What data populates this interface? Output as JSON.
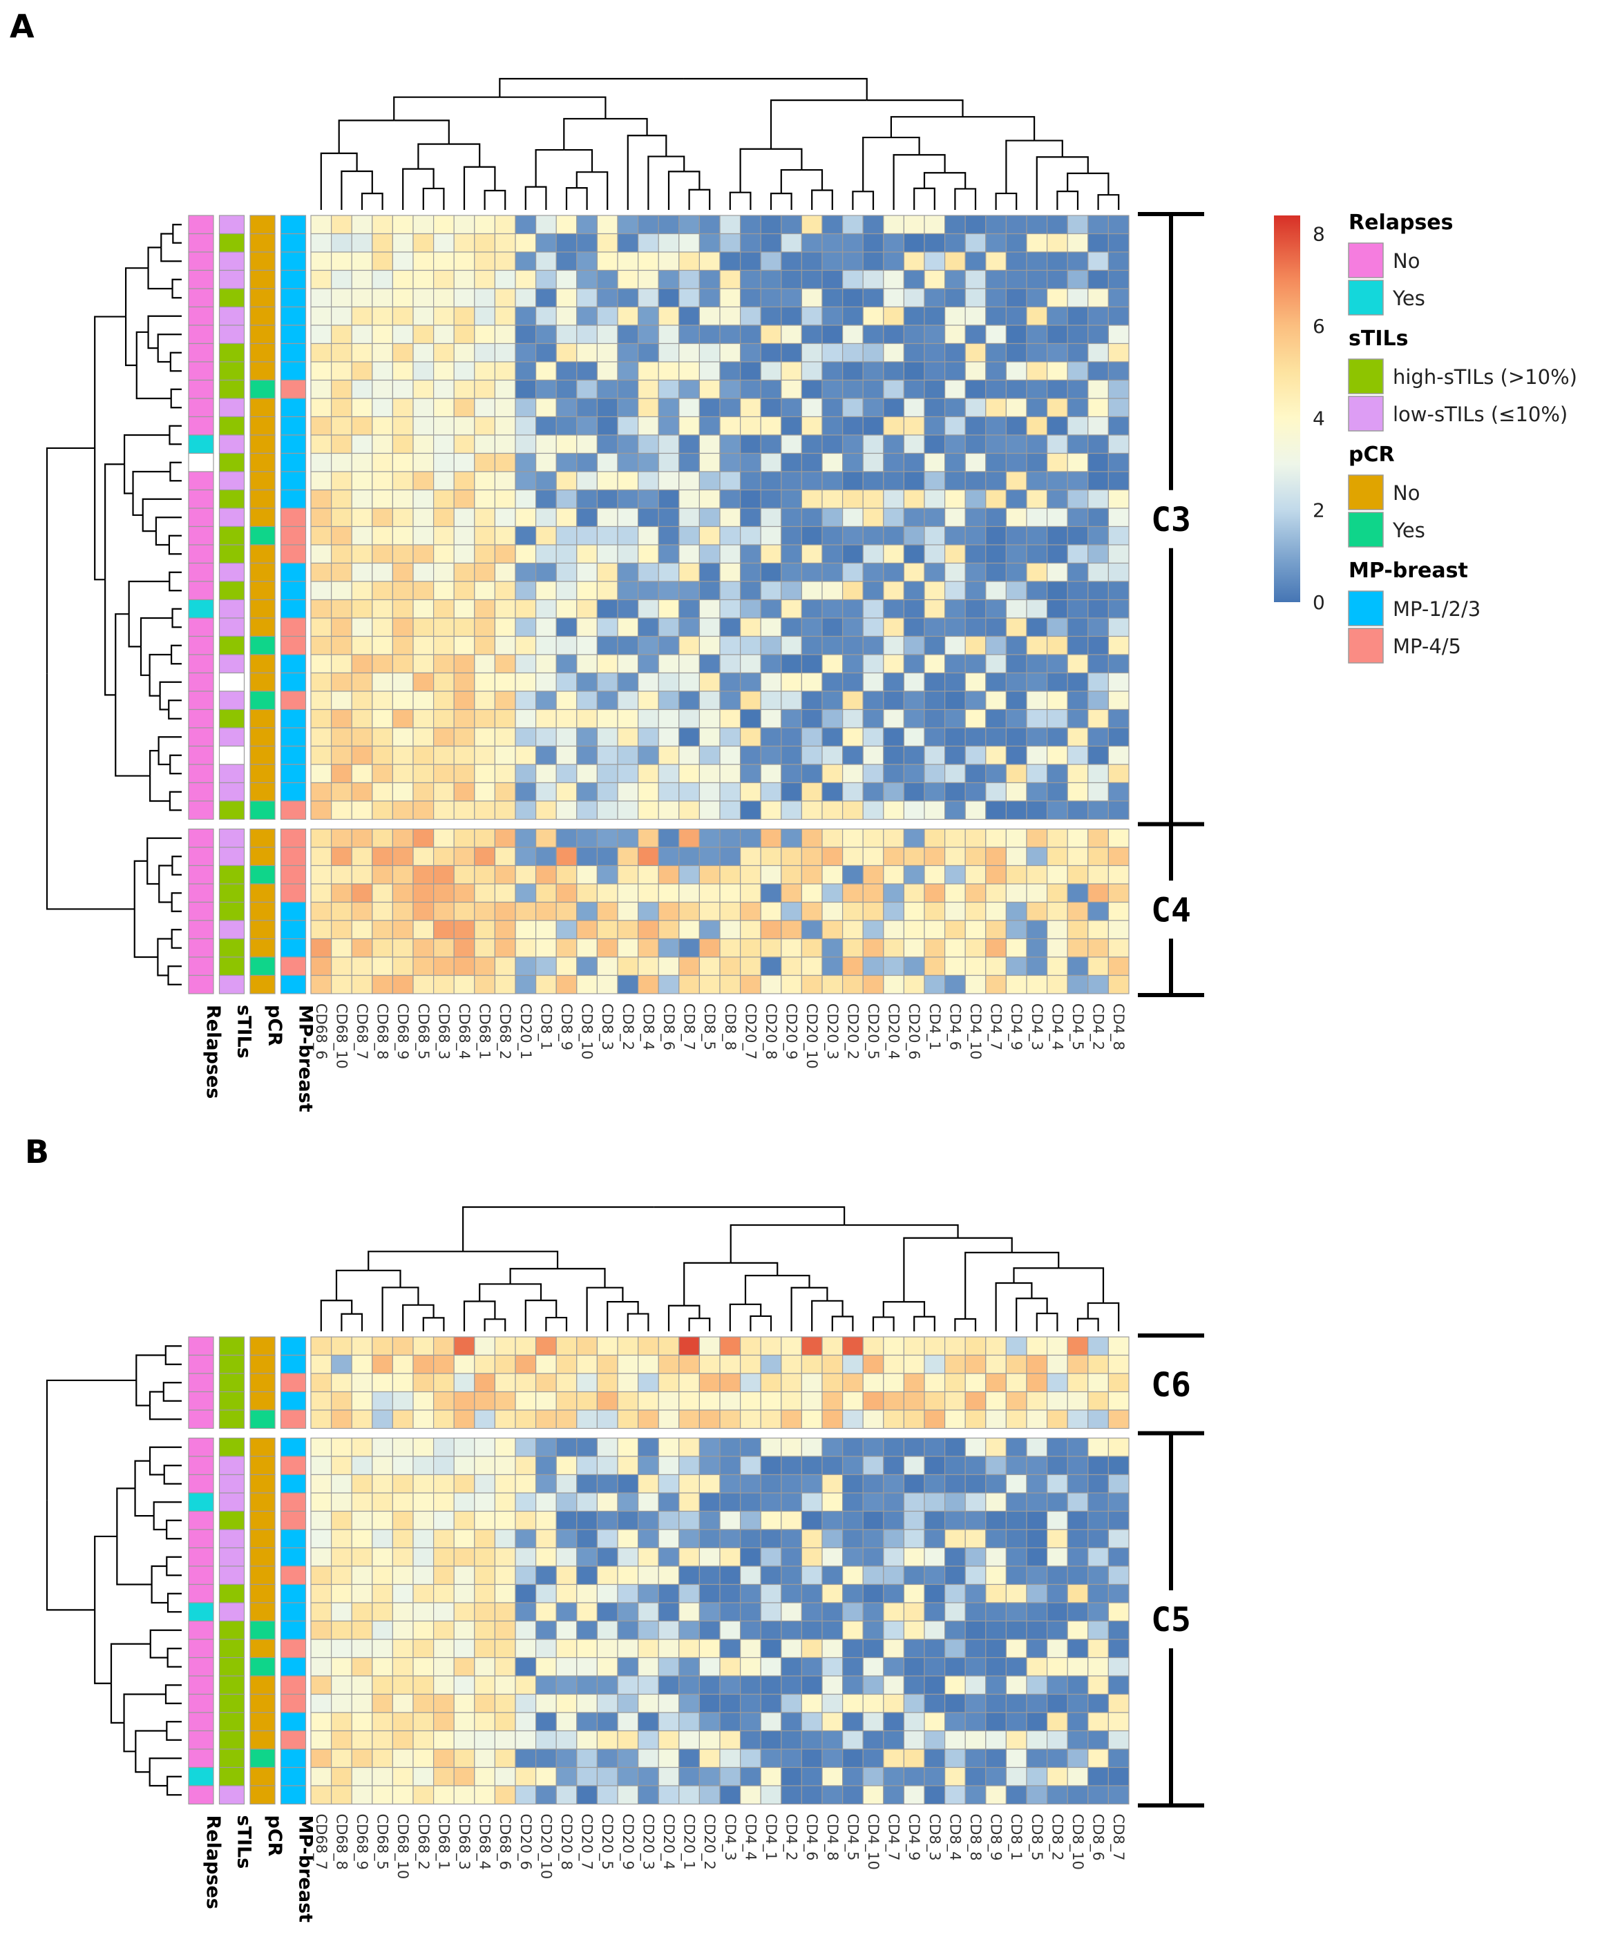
{
  "chart_data": [
    {
      "type": "heatmap",
      "panel": "A",
      "columns": [
        "CD68_6",
        "CD68_10",
        "CD68_7",
        "CD68_8",
        "CD68_9",
        "CD68_5",
        "CD68_3",
        "CD68_4",
        "CD68_1",
        "CD68_2",
        "CD20_1",
        "CD8_1",
        "CD8_9",
        "CD8_10",
        "CD8_3",
        "CD8_2",
        "CD8_4",
        "CD8_6",
        "CD8_7",
        "CD8_5",
        "CD8_8",
        "CD20_7",
        "CD20_8",
        "CD20_9",
        "CD20_10",
        "CD20_3",
        "CD20_2",
        "CD20_5",
        "CD20_4",
        "CD20_6",
        "CD4_1",
        "CD4_6",
        "CD4_10",
        "CD4_7",
        "CD4_9",
        "CD4_3",
        "CD4_4",
        "CD4_5",
        "CD4_2",
        "CD4_8"
      ],
      "column_groups": [
        {
          "name": "CD68",
          "start": 0,
          "end": 10,
          "pattern": "high"
        },
        {
          "name": "CD20_1+CD8",
          "start": 10,
          "end": 21,
          "pattern": "mid"
        },
        {
          "name": "CD20",
          "start": 21,
          "end": 30,
          "pattern": "low"
        },
        {
          "name": "CD4",
          "start": 30,
          "end": 40,
          "pattern": "low"
        }
      ],
      "clusters": [
        {
          "label": "C3",
          "rows": 33
        },
        {
          "label": "C4",
          "rows": 9
        }
      ],
      "row_annotations": {
        "Relapses": [
          "No",
          "No",
          "No",
          "No",
          "No",
          "No",
          "No",
          "No",
          "No",
          "No",
          "No",
          "No",
          "Yes",
          "",
          "No",
          "No",
          "No",
          "No",
          "No",
          "No",
          "No",
          "Yes",
          "No",
          "No",
          "No",
          "No",
          "No",
          "No",
          "No",
          "No",
          "No",
          "No",
          "No",
          "No",
          "No",
          "No",
          "No",
          "No",
          "No",
          "No",
          "No",
          "No"
        ],
        "sTILs": [
          "low",
          "high",
          "low",
          "low",
          "high",
          "low",
          "low",
          "high",
          "high",
          "high",
          "low",
          "high",
          "low",
          "high",
          "low",
          "high",
          "low",
          "high",
          "high",
          "low",
          "high",
          "low",
          "low",
          "high",
          "low",
          "",
          "low",
          "high",
          "low",
          "",
          "low",
          "low",
          "high",
          "low",
          "low",
          "high",
          "high",
          "high",
          "low",
          "high",
          "high",
          "low"
        ],
        "pCR": [
          "No",
          "No",
          "No",
          "No",
          "No",
          "No",
          "No",
          "No",
          "No",
          "Yes",
          "No",
          "No",
          "No",
          "No",
          "No",
          "No",
          "No",
          "Yes",
          "No",
          "No",
          "No",
          "No",
          "No",
          "Yes",
          "No",
          "No",
          "Yes",
          "No",
          "No",
          "No",
          "No",
          "No",
          "Yes",
          "No",
          "No",
          "Yes",
          "No",
          "No",
          "No",
          "No",
          "Yes",
          "No"
        ],
        "MP-breast": [
          "MP-1/2/3",
          "MP-1/2/3",
          "MP-1/2/3",
          "MP-1/2/3",
          "MP-1/2/3",
          "MP-1/2/3",
          "MP-1/2/3",
          "MP-1/2/3",
          "MP-1/2/3",
          "MP-4/5",
          "MP-1/2/3",
          "MP-1/2/3",
          "MP-1/2/3",
          "MP-1/2/3",
          "MP-1/2/3",
          "MP-1/2/3",
          "MP-4/5",
          "MP-4/5",
          "MP-4/5",
          "MP-1/2/3",
          "MP-1/2/3",
          "MP-1/2/3",
          "MP-4/5",
          "MP-4/5",
          "MP-1/2/3",
          "MP-1/2/3",
          "MP-4/5",
          "MP-1/2/3",
          "MP-1/2/3",
          "MP-1/2/3",
          "MP-1/2/3",
          "MP-1/2/3",
          "MP-4/5",
          "MP-4/5",
          "MP-4/5",
          "MP-4/5",
          "MP-4/5",
          "MP-1/2/3",
          "MP-1/2/3",
          "MP-1/2/3",
          "MP-4/5",
          "MP-1/2/3"
        ]
      }
    },
    {
      "type": "heatmap",
      "panel": "B",
      "columns": [
        "CD68_7",
        "CD68_8",
        "CD68_9",
        "CD68_5",
        "CD68_10",
        "CD68_2",
        "CD68_1",
        "CD68_3",
        "CD68_4",
        "CD68_6",
        "CD20_6",
        "CD20_10",
        "CD20_8",
        "CD20_7",
        "CD20_5",
        "CD20_9",
        "CD20_3",
        "CD20_4",
        "CD20_1",
        "CD20_2",
        "CD4_3",
        "CD4_4",
        "CD4_1",
        "CD4_2",
        "CD4_6",
        "CD4_8",
        "CD4_5",
        "CD4_10",
        "CD4_7",
        "CD4_9",
        "CD8_3",
        "CD8_4",
        "CD8_8",
        "CD8_9",
        "CD8_1",
        "CD8_5",
        "CD8_2",
        "CD8_10",
        "CD8_6",
        "CD8_7"
      ],
      "column_groups": [
        {
          "name": "CD68",
          "start": 0,
          "end": 10,
          "pattern": "high"
        },
        {
          "name": "CD20",
          "start": 10,
          "end": 20,
          "pattern": "mid"
        },
        {
          "name": "CD4",
          "start": 20,
          "end": 30,
          "pattern": "low"
        },
        {
          "name": "CD8",
          "start": 30,
          "end": 40,
          "pattern": "low"
        }
      ],
      "clusters": [
        {
          "label": "C6",
          "rows": 5
        },
        {
          "label": "C5",
          "rows": 20
        }
      ],
      "row_annotations": {
        "Relapses": [
          "No",
          "No",
          "No",
          "No",
          "No",
          "No",
          "No",
          "No",
          "Yes",
          "No",
          "No",
          "No",
          "No",
          "No",
          "Yes",
          "No",
          "No",
          "No",
          "No",
          "No",
          "No",
          "No",
          "No",
          "Yes",
          "No"
        ],
        "sTILs": [
          "high",
          "high",
          "high",
          "high",
          "high",
          "high",
          "low",
          "low",
          "low",
          "high",
          "low",
          "low",
          "low",
          "high",
          "low",
          "high",
          "high",
          "high",
          "high",
          "high",
          "high",
          "high",
          "high",
          "high",
          "low"
        ],
        "pCR": [
          "No",
          "No",
          "No",
          "No",
          "Yes",
          "No",
          "No",
          "No",
          "No",
          "No",
          "No",
          "No",
          "No",
          "No",
          "No",
          "Yes",
          "No",
          "Yes",
          "No",
          "No",
          "No",
          "No",
          "Yes",
          "No",
          "No"
        ],
        "MP-breast": [
          "MP-1/2/3",
          "MP-1/2/3",
          "MP-4/5",
          "MP-1/2/3",
          "MP-4/5",
          "MP-1/2/3",
          "MP-4/5",
          "MP-1/2/3",
          "MP-4/5",
          "MP-4/5",
          "MP-1/2/3",
          "MP-1/2/3",
          "MP-4/5",
          "MP-1/2/3",
          "MP-1/2/3",
          "MP-1/2/3",
          "MP-4/5",
          "MP-1/2/3",
          "MP-4/5",
          "MP-4/5",
          "MP-1/2/3",
          "MP-4/5",
          "MP-1/2/3",
          "MP-1/2/3",
          "MP-1/2/3"
        ]
      }
    }
  ],
  "panel_labels": [
    "A",
    "B"
  ],
  "annotation_labels": [
    "Relapses",
    "sTILs",
    "pCR",
    "MP-breast"
  ],
  "color_scale": {
    "min": 0,
    "max": 8.4,
    "ticks": [
      0,
      2,
      4,
      6,
      8
    ],
    "stops": [
      {
        "value": 0,
        "color": "#4575b4"
      },
      {
        "value": 1,
        "color": "#7fa6cf"
      },
      {
        "value": 2,
        "color": "#c1d9ea"
      },
      {
        "value": 3,
        "color": "#eef6e9"
      },
      {
        "value": 4,
        "color": "#fff8c8"
      },
      {
        "value": 5,
        "color": "#fde3a0"
      },
      {
        "value": 6,
        "color": "#fbbf80"
      },
      {
        "value": 7,
        "color": "#f48a5b"
      },
      {
        "value": 8.4,
        "color": "#d73027"
      }
    ]
  },
  "legend": {
    "groups": [
      {
        "title": "Relapses",
        "items": [
          {
            "label": "No",
            "color": "#f57ddf"
          },
          {
            "label": "Yes",
            "color": "#14d7db"
          }
        ]
      },
      {
        "title": "sTILs",
        "items": [
          {
            "label": "high-sTILs (>10%)",
            "color": "#8ec400"
          },
          {
            "label": "low-sTILs (≤10%)",
            "color": "#dd9df4"
          }
        ]
      },
      {
        "title": "pCR",
        "items": [
          {
            "label": "No",
            "color": "#e0a400"
          },
          {
            "label": "Yes",
            "color": "#0fd58a"
          }
        ]
      },
      {
        "title": "MP-breast",
        "items": [
          {
            "label": "MP-1/2/3",
            "color": "#00bfff"
          },
          {
            "label": "MP-4/5",
            "color": "#fa8c84"
          }
        ]
      }
    ]
  },
  "ann_colors": {
    "Relapses": {
      "No": "#f57ddf",
      "Yes": "#14d7db",
      "": "#ffffff"
    },
    "sTILs": {
      "high": "#8ec400",
      "low": "#dd9df4",
      "": "#ffffff"
    },
    "pCR": {
      "No": "#e0a400",
      "Yes": "#0fd58a",
      "": "#ffffff"
    },
    "MP-breast": {
      "MP-1/2/3": "#00bfff",
      "MP-4/5": "#fa8c84",
      "": "#ffffff"
    }
  }
}
